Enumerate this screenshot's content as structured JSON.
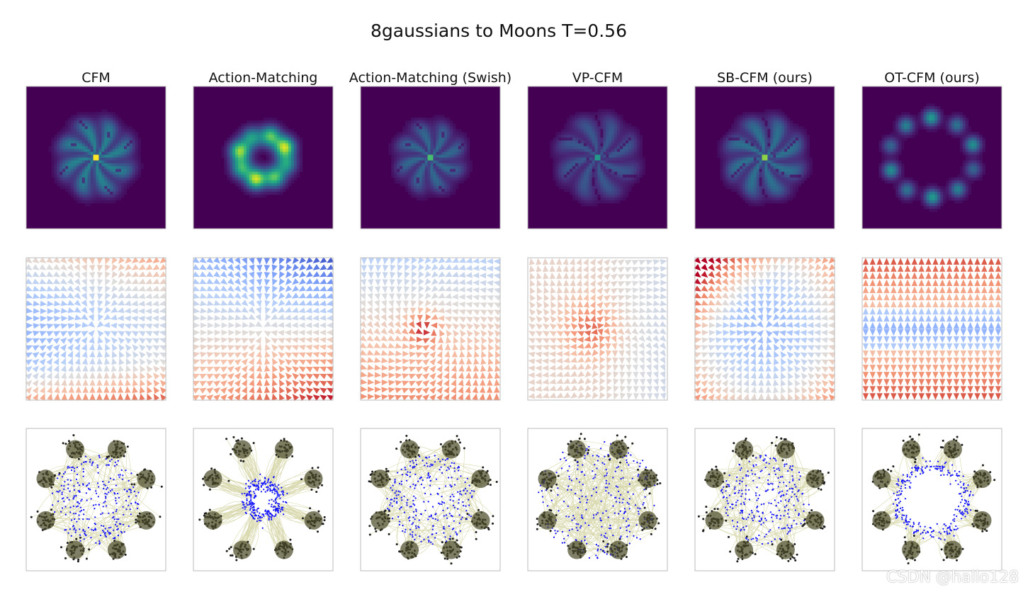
{
  "figure": {
    "title": "8gaussians to Moons T=0.56",
    "watermark": "CSDN @hallo128"
  },
  "chart_data": {
    "type": "grid",
    "title": "8gaussians to Moons T=0.56",
    "columns": [
      {
        "title": "CFM",
        "key": "cfm"
      },
      {
        "title": "Action-Matching",
        "key": "am"
      },
      {
        "title": "Action-Matching (Swish)",
        "key": "ams"
      },
      {
        "title": "VP-CFM",
        "key": "vpcfm"
      },
      {
        "title": "SB-CFM (ours)",
        "key": "sbcfm"
      },
      {
        "title": "OT-CFM (ours)",
        "key": "otcfm"
      }
    ],
    "rows": [
      {
        "kind": "heatmap",
        "colormap": "viridis"
      },
      {
        "kind": "vector-field",
        "colormap": "coolwarm"
      },
      {
        "kind": "trajectories",
        "start_color": "#1a1a1a",
        "path_color": "#b8b86a",
        "end_color": "#0000ff"
      }
    ],
    "grid": false,
    "legend": "none"
  }
}
